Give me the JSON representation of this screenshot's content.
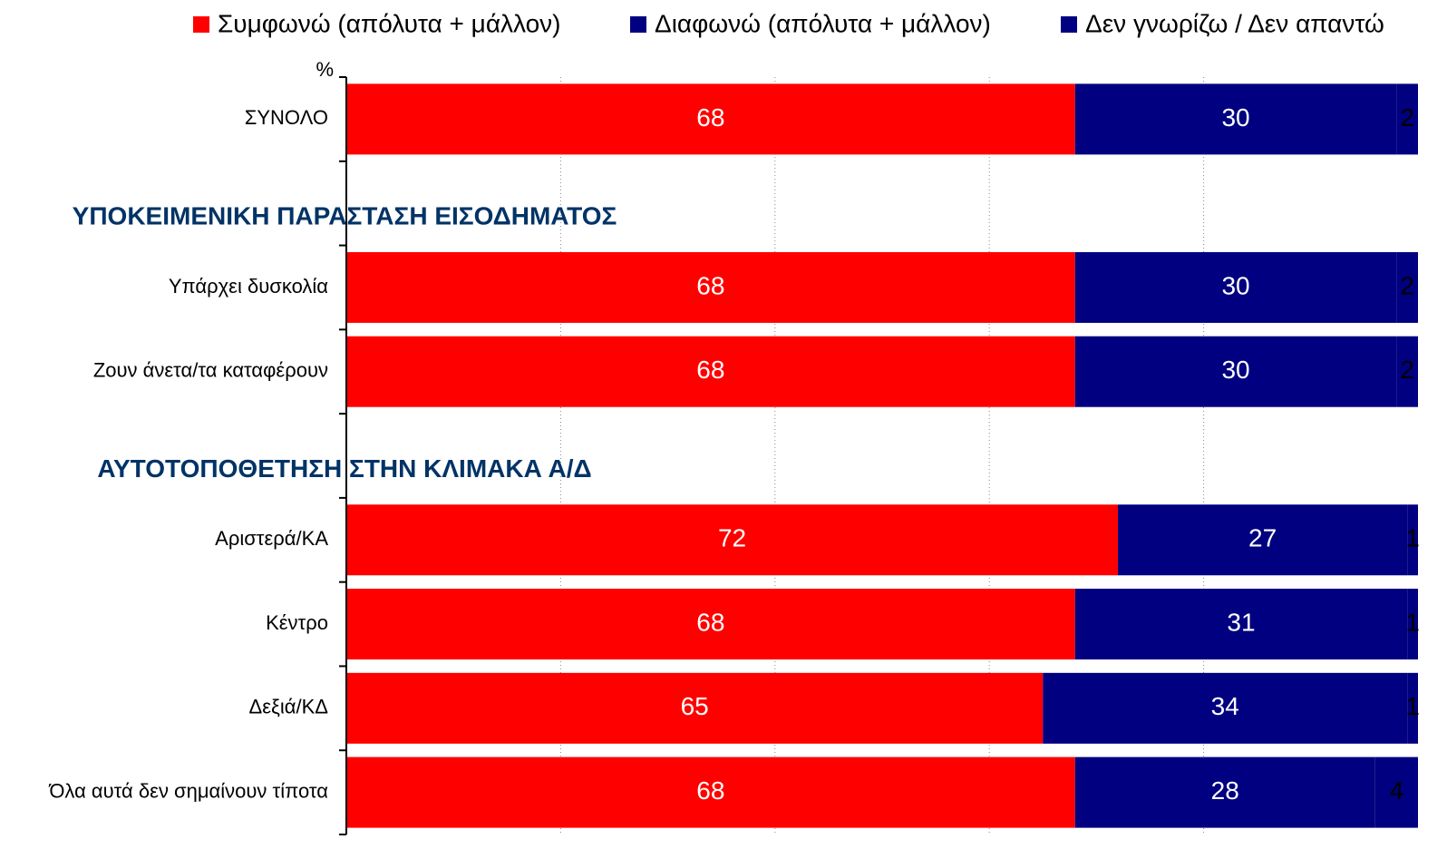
{
  "chart_data": {
    "type": "stacked_barh",
    "unit_label": "%",
    "categories": [
      "ΣΥΝΟΛΟ",
      "ΥΠΟΚΕΙΜΕΝΙΚΗ ΠΑΡΑΣΤΑΣΗ ΕΙΣΟΔΗΜΑΤΟΣ",
      "Υπάρχει δυσκολία",
      "Ζουν άνετα/τα καταφέρουν",
      "ΑΥΤΟΤΟΠΟΘΕΤΗΣΗ ΣΤΗΝ ΚΛΙΜΑΚΑ Α/Δ",
      "Αριστερά/ΚΑ",
      "Κέντρο",
      "Δεξιά/ΚΔ",
      "Όλα αυτά δεν σημαίνουν τίποτα"
    ],
    "series": [
      {
        "name": "Συμφωνώ (απόλυτα + μάλλον)",
        "color": "#ff0000",
        "label_color": "#ffffff",
        "values": [
          68,
          null,
          68,
          68,
          null,
          72,
          68,
          65,
          68
        ]
      },
      {
        "name": "Διαφωνώ (απόλυτα + μάλλον)",
        "color": "#000080",
        "label_color": "#ffffff",
        "values": [
          30,
          null,
          30,
          30,
          null,
          27,
          31,
          34,
          28
        ]
      },
      {
        "name": "Δεν γνωρίζω / Δεν απαντώ",
        "color": "#000080",
        "label_color": "#000000",
        "values": [
          2,
          null,
          2,
          2,
          null,
          1,
          1,
          1,
          4
        ]
      }
    ],
    "xlim": [
      0,
      100
    ],
    "xticks": [
      0,
      20,
      40,
      60,
      80,
      100
    ],
    "grid": true,
    "legend": "top"
  }
}
